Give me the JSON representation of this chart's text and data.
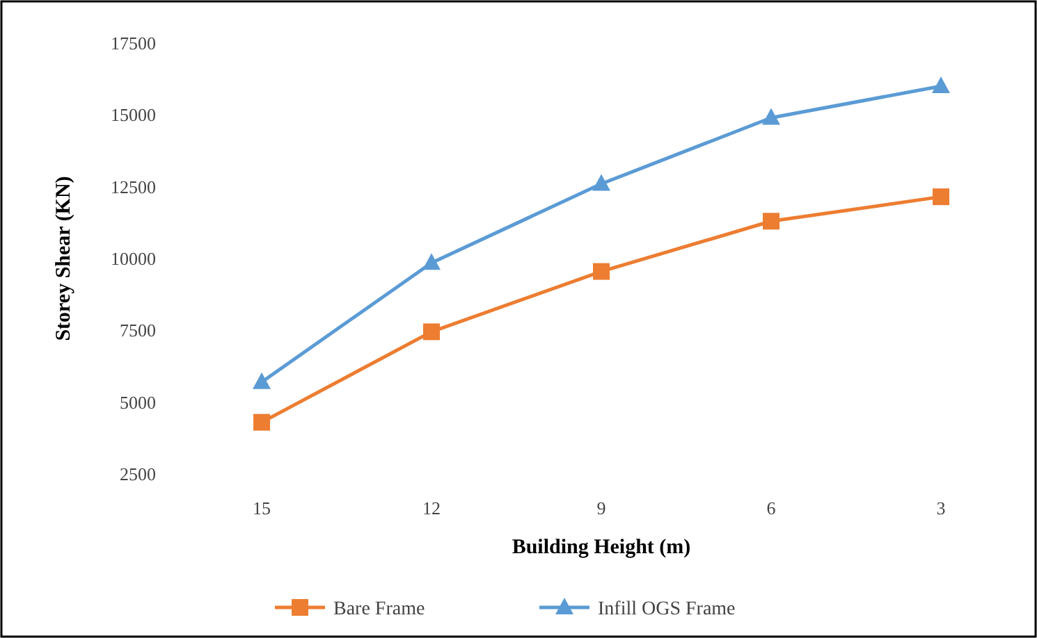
{
  "chart_data": {
    "type": "line",
    "xlabel": "Building Height (m)",
    "ylabel": "Storey Shear (KN)",
    "categories": [
      "15",
      "12",
      "9",
      "6",
      "3"
    ],
    "series": [
      {
        "name": "Bare Frame",
        "color": "#ed7d31",
        "marker": "square",
        "values": [
          4300,
          7450,
          9550,
          11300,
          12150
        ]
      },
      {
        "name": "Infill OGS Frame",
        "color": "#5b9bd5",
        "marker": "triangle",
        "values": [
          5700,
          9850,
          12600,
          14900,
          16000
        ]
      }
    ],
    "ylim": [
      2500,
      17500
    ],
    "yticks": [
      2500,
      5000,
      7500,
      10000,
      12500,
      15000,
      17500
    ],
    "grid": false,
    "legend": "bottom"
  }
}
